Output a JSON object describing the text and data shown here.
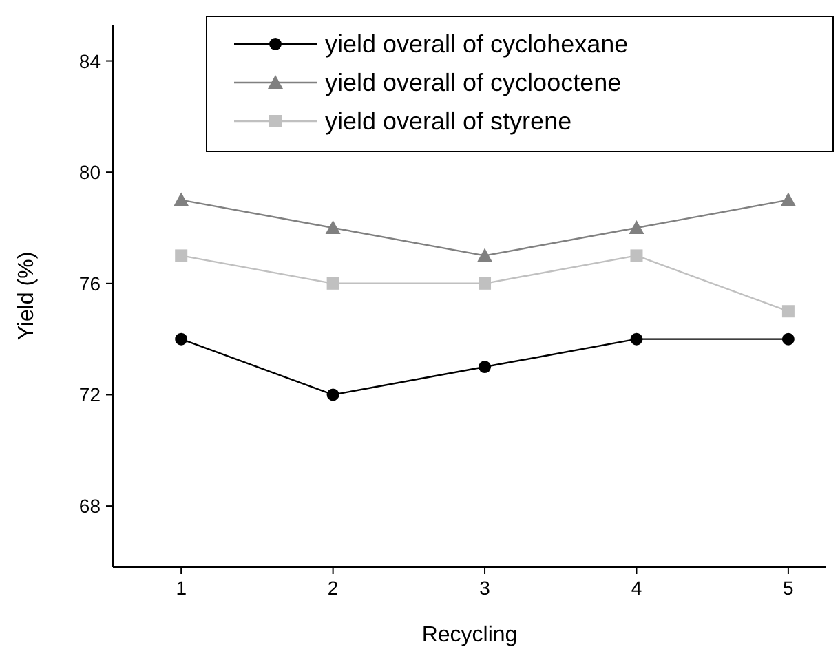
{
  "chart_data": {
    "type": "line",
    "xlabel": "Recycling",
    "ylabel": "Yield (%)",
    "x": [
      1,
      2,
      3,
      4,
      5
    ],
    "xlim": [
      0.55,
      5.25
    ],
    "xticks": [
      1,
      2,
      3,
      4,
      5
    ],
    "ylim": [
      65.8,
      85.3
    ],
    "yticks": [
      68,
      72,
      76,
      80,
      84
    ],
    "legend": "top",
    "grid": false,
    "series": [
      {
        "name": "yield overall of cyclohexane",
        "color": "#000000",
        "marker": "circle",
        "values": [
          74,
          72,
          73,
          74,
          74
        ]
      },
      {
        "name": "yield overall of cyclooctene",
        "color": "#808080",
        "marker": "triangle",
        "values": [
          79,
          78,
          77,
          78,
          79
        ]
      },
      {
        "name": "yield overall of styrene",
        "color": "#c0c0c0",
        "marker": "square",
        "values": [
          77,
          76,
          76,
          77,
          75
        ]
      }
    ]
  }
}
